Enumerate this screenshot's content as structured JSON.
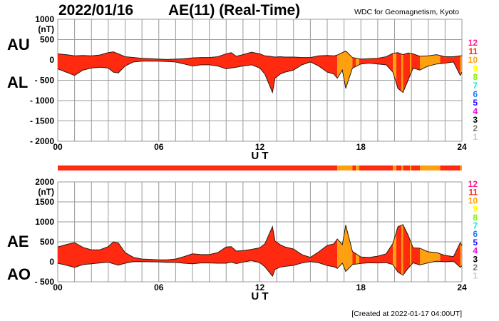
{
  "header": {
    "date": "2022/01/16",
    "title": "AE(11) (Real-Time)",
    "source": "WDC for Geomagnetism, Kyoto",
    "created": "[Created at 2022-01-17 04:00UT]"
  },
  "chart_data": [
    {
      "type": "area",
      "panel": "AU/AL",
      "labels": {
        "upper": "AU",
        "lower": "AL"
      },
      "unit": "(nT)",
      "xlabel": "U T",
      "xticks": [
        "00",
        "06",
        "12",
        "18",
        "24"
      ],
      "xlim": [
        0,
        24
      ],
      "ylim": [
        -2000,
        1000
      ],
      "yticks": [
        {
          "v": 1000,
          "t": "1000"
        },
        {
          "v": 500,
          "t": "500"
        },
        {
          "v": 0,
          "t": "0"
        },
        {
          "v": -500,
          "t": "- 500"
        },
        {
          "v": -1000,
          "t": "- 1000"
        },
        {
          "v": -1500,
          "t": "- 1500"
        },
        {
          "v": -2000,
          "t": "- 2000"
        }
      ],
      "grid": true
    },
    {
      "type": "area",
      "panel": "AE/AO",
      "labels": {
        "upper": "AE",
        "lower": "AO"
      },
      "unit": "(nT)",
      "xlabel": "U T",
      "xticks": [
        "00",
        "06",
        "12",
        "18",
        "24"
      ],
      "xlim": [
        0,
        24
      ],
      "ylim": [
        -500,
        2000
      ],
      "yticks": [
        {
          "v": 2000,
          "t": "2000"
        },
        {
          "v": 1500,
          "t": "1500"
        },
        {
          "v": 1000,
          "t": "1000"
        },
        {
          "v": 500,
          "t": "500"
        },
        {
          "v": 0,
          "t": "0"
        },
        {
          "v": -500,
          "t": "- 500"
        }
      ],
      "grid": true
    }
  ],
  "series": {
    "t": [
      0,
      0.5,
      1,
      1.5,
      2,
      2.5,
      3,
      3.3,
      3.6,
      4,
      4.5,
      5,
      5.5,
      6,
      6.5,
      7,
      7.5,
      8,
      8.5,
      9,
      9.5,
      10,
      10.3,
      10.6,
      11,
      11.5,
      12,
      12.3,
      12.6,
      12.75,
      12.9,
      13.2,
      13.5,
      14,
      14.5,
      15,
      15.5,
      16,
      16.4,
      16.6,
      16.9,
      17.1,
      17.5,
      18,
      18.5,
      19,
      19.5,
      19.9,
      20.2,
      20.5,
      20.8,
      21.1,
      21.5,
      22,
      22.5,
      23,
      23.5,
      23.9,
      24
    ],
    "au": [
      150,
      130,
      100,
      110,
      100,
      120,
      180,
      200,
      150,
      80,
      60,
      40,
      30,
      20,
      10,
      20,
      30,
      50,
      60,
      60,
      80,
      150,
      180,
      90,
      130,
      190,
      150,
      100,
      90,
      80,
      70,
      80,
      70,
      70,
      60,
      60,
      100,
      110,
      100,
      120,
      180,
      220,
      60,
      20,
      30,
      40,
      80,
      160,
      180,
      130,
      170,
      150,
      90,
      100,
      130,
      80,
      80,
      100,
      100
    ],
    "al": [
      -220,
      -300,
      -380,
      -250,
      -200,
      -180,
      -200,
      -300,
      -320,
      -150,
      -50,
      -30,
      -30,
      -30,
      -40,
      -50,
      -100,
      -150,
      -120,
      -120,
      -150,
      -220,
      -200,
      -180,
      -150,
      -120,
      -200,
      -350,
      -650,
      -800,
      -450,
      -350,
      -300,
      -250,
      -120,
      -50,
      -150,
      -300,
      -350,
      -450,
      -250,
      -700,
      -200,
      -100,
      -80,
      -100,
      -120,
      -300,
      -700,
      -800,
      -500,
      -200,
      -250,
      -150,
      -100,
      -80,
      -50,
      -380,
      -300
    ]
  },
  "stations": {
    "segments": [
      [
        0,
        16.6,
        11
      ],
      [
        16.6,
        17.5,
        10
      ],
      [
        17.5,
        17.7,
        11
      ],
      [
        17.7,
        17.9,
        10
      ],
      [
        17.9,
        19.9,
        11
      ],
      [
        19.9,
        20.1,
        10
      ],
      [
        20.1,
        20.4,
        11
      ],
      [
        20.4,
        20.5,
        10
      ],
      [
        20.5,
        20.9,
        11
      ],
      [
        20.9,
        21.0,
        10
      ],
      [
        21.0,
        21.5,
        11
      ],
      [
        21.5,
        22.7,
        10
      ],
      [
        22.7,
        23.9,
        11
      ],
      [
        23.9,
        24,
        10
      ]
    ],
    "legend": [
      {
        "n": "12",
        "color": "#ff1a8c"
      },
      {
        "n": "11",
        "color": "#ff2a10"
      },
      {
        "n": "10",
        "color": "#ffa010"
      },
      {
        "n": "9",
        "color": "#ffff00"
      },
      {
        "n": "8",
        "color": "#88ee00"
      },
      {
        "n": "7",
        "color": "#00f0d0"
      },
      {
        "n": "6",
        "color": "#1e7cff"
      },
      {
        "n": "5",
        "color": "#2a10ff"
      },
      {
        "n": "4",
        "color": "#ee00ee"
      },
      {
        "n": "3",
        "color": "#000000"
      },
      {
        "n": "2",
        "color": "#777777"
      },
      {
        "n": "1",
        "color": "#cccccc"
      }
    ]
  }
}
